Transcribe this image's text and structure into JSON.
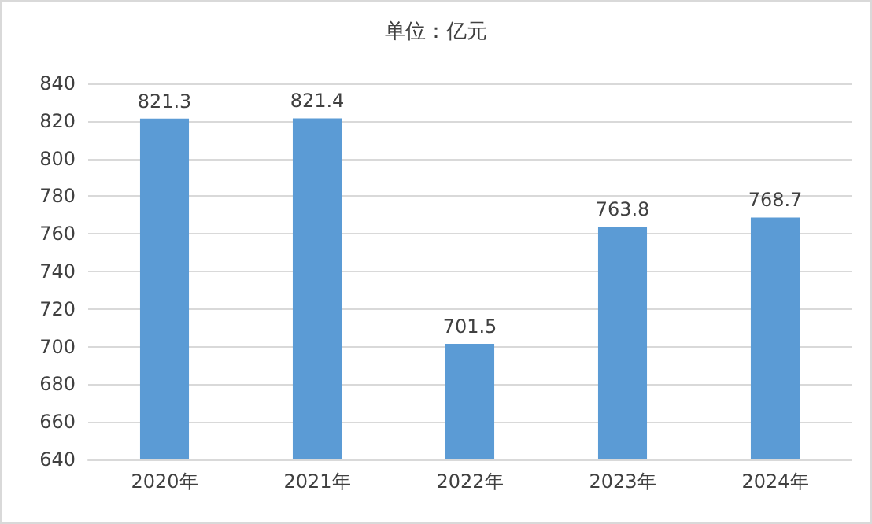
{
  "chart_data": {
    "type": "bar",
    "title": "单位：亿元",
    "categories": [
      "2020年",
      "2021年",
      "2022年",
      "2023年",
      "2024年"
    ],
    "values": [
      821.3,
      821.4,
      701.5,
      763.8,
      768.7
    ],
    "color": "#5b9bd5",
    "ylim": [
      640,
      840
    ],
    "yticks": [
      640,
      660,
      680,
      700,
      720,
      740,
      760,
      780,
      800,
      820,
      840
    ],
    "grid": "y",
    "data_labels": true
  }
}
